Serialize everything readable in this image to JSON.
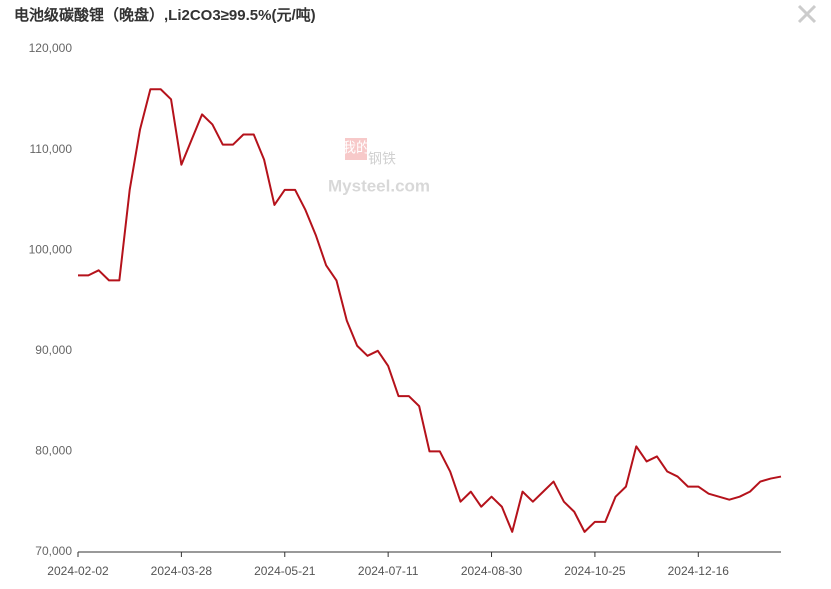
{
  "chart_data": {
    "type": "line",
    "title": "电池级碳酸锂（晚盘）,Li2CO3≥99.5%(元/吨)",
    "watermark": [
      "我的",
      "钢铁",
      "Mysteel.com"
    ],
    "color": "#b5121b",
    "categories": [
      "2024-02-02",
      null,
      null,
      null,
      null,
      null,
      null,
      null,
      null,
      null,
      "2024-03-28",
      null,
      null,
      null,
      null,
      null,
      null,
      null,
      null,
      null,
      "2024-05-21",
      null,
      null,
      null,
      null,
      null,
      null,
      null,
      null,
      null,
      "2024-07-11",
      null,
      null,
      null,
      null,
      null,
      null,
      null,
      null,
      null,
      "2024-08-30",
      null,
      null,
      null,
      null,
      null,
      null,
      null,
      null,
      null,
      "2024-10-25",
      null,
      null,
      null,
      null,
      null,
      null,
      null,
      null,
      null,
      "2024-12-16",
      null,
      null,
      null,
      null,
      null,
      null,
      null,
      null
    ],
    "values": [
      97500,
      97500,
      98000,
      97000,
      97000,
      106000,
      112000,
      116000,
      116000,
      115000,
      108500,
      111000,
      113500,
      112500,
      110500,
      110500,
      111500,
      111500,
      109000,
      104500,
      106000,
      106000,
      104000,
      101500,
      98500,
      97000,
      93000,
      90500,
      89500,
      90000,
      88500,
      85500,
      85500,
      84500,
      80000,
      80000,
      78000,
      75000,
      76000,
      74500,
      75500,
      74500,
      72000,
      76000,
      75000,
      76000,
      77000,
      75000,
      74000,
      72000,
      73000,
      73000,
      75500,
      76500,
      80500,
      79000,
      79500,
      78000,
      77500,
      76500,
      76500,
      75800,
      75500,
      75200,
      75500,
      76000,
      77000,
      77300,
      77500
    ],
    "ylim": [
      70000,
      120000
    ],
    "yticks": [
      {
        "value": 70000,
        "label": "70,000"
      },
      {
        "value": 80000,
        "label": "80,000"
      },
      {
        "value": 90000,
        "label": "90,000"
      },
      {
        "value": 100000,
        "label": "100,000"
      },
      {
        "value": 110000,
        "label": "110,000"
      },
      {
        "value": 120000,
        "label": "120,000"
      }
    ],
    "grid": false
  }
}
